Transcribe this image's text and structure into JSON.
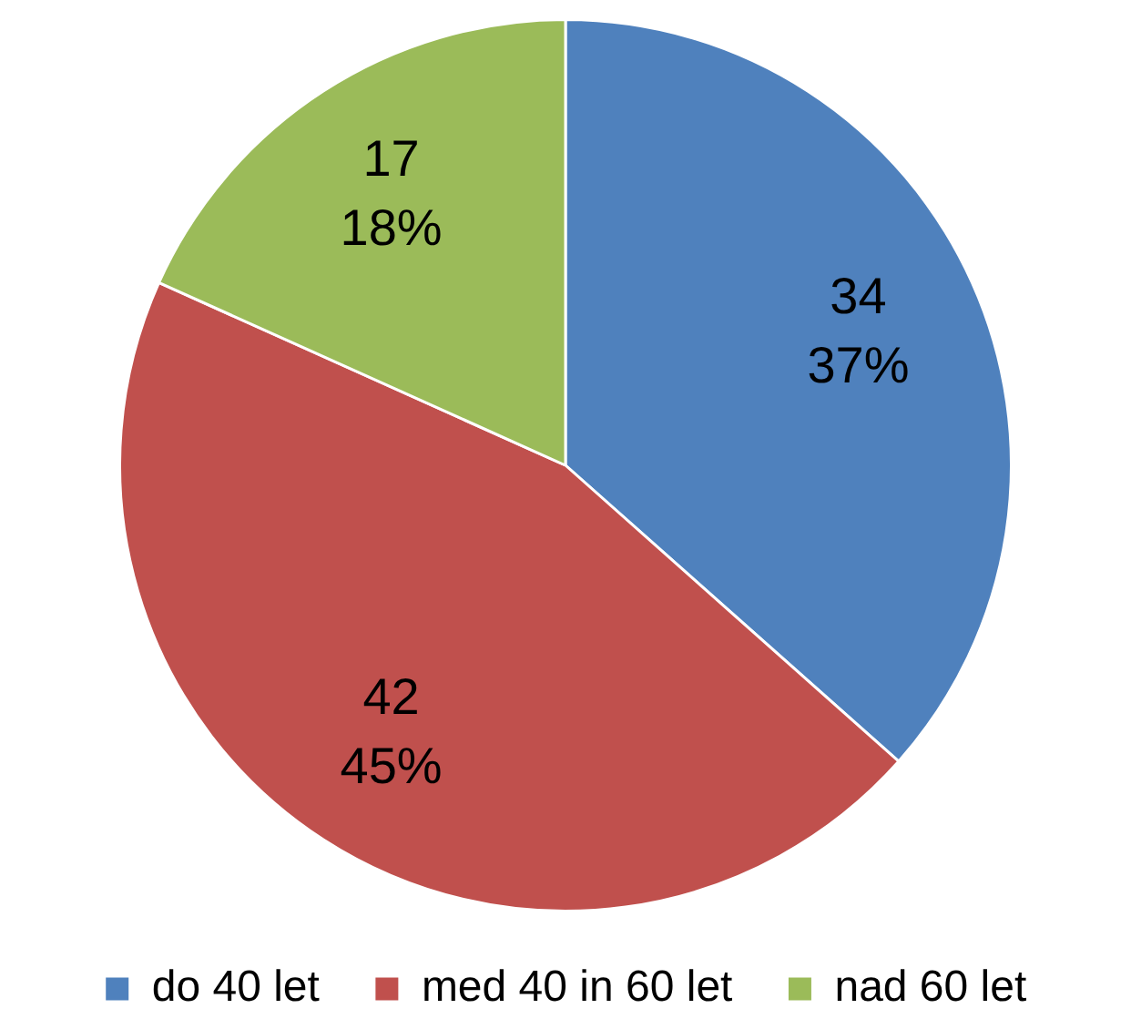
{
  "chart_data": {
    "type": "pie",
    "categories": [
      "do 40 let",
      "med 40 in 60 let",
      "nad 60 let"
    ],
    "values": [
      34,
      42,
      17
    ],
    "colors": [
      "#4f81bd",
      "#c0504d",
      "#9bbb59"
    ],
    "value_labels": [
      "34\n37%",
      "42\n45%",
      "17\n18%"
    ],
    "legend": "bottom"
  }
}
